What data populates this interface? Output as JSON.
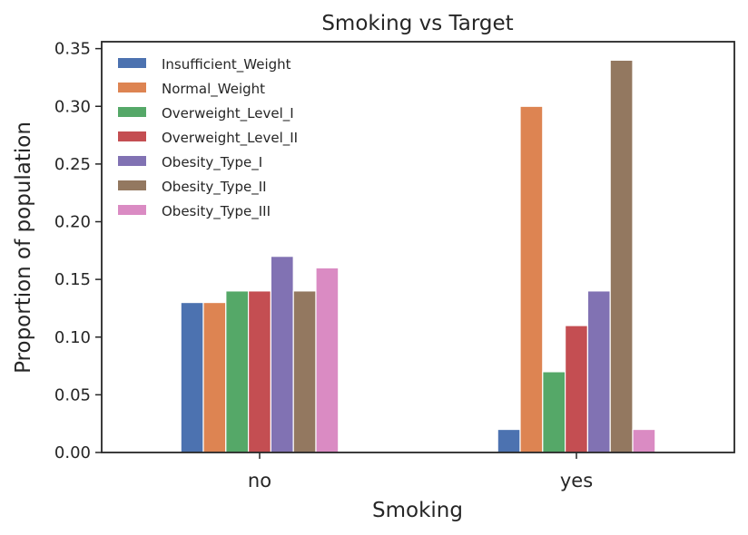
{
  "chart_data": {
    "type": "bar",
    "title": "Smoking vs Target",
    "xlabel": "Smoking",
    "ylabel": "Proportion of population",
    "categories": [
      "no",
      "yes"
    ],
    "ylim": [
      0,
      0.356
    ],
    "yticks": [
      "0.00",
      "0.05",
      "0.10",
      "0.15",
      "0.20",
      "0.25",
      "0.30",
      "0.35"
    ],
    "grid": false,
    "legend_position": "top-left",
    "series": [
      {
        "name": "Insufficient_Weight",
        "color": "#4c72b0",
        "values": [
          0.13,
          0.02
        ]
      },
      {
        "name": "Normal_Weight",
        "color": "#dd8452",
        "values": [
          0.13,
          0.3
        ]
      },
      {
        "name": "Overweight_Level_I",
        "color": "#55a868",
        "values": [
          0.14,
          0.07
        ]
      },
      {
        "name": "Overweight_Level_II",
        "color": "#c44e52",
        "values": [
          0.14,
          0.11
        ]
      },
      {
        "name": "Obesity_Type_I",
        "color": "#8172b3",
        "values": [
          0.17,
          0.14
        ]
      },
      {
        "name": "Obesity_Type_II",
        "color": "#937860",
        "values": [
          0.14,
          0.34
        ]
      },
      {
        "name": "Obesity_Type_III",
        "color": "#da8bc3",
        "values": [
          0.16,
          0.02
        ]
      }
    ]
  }
}
